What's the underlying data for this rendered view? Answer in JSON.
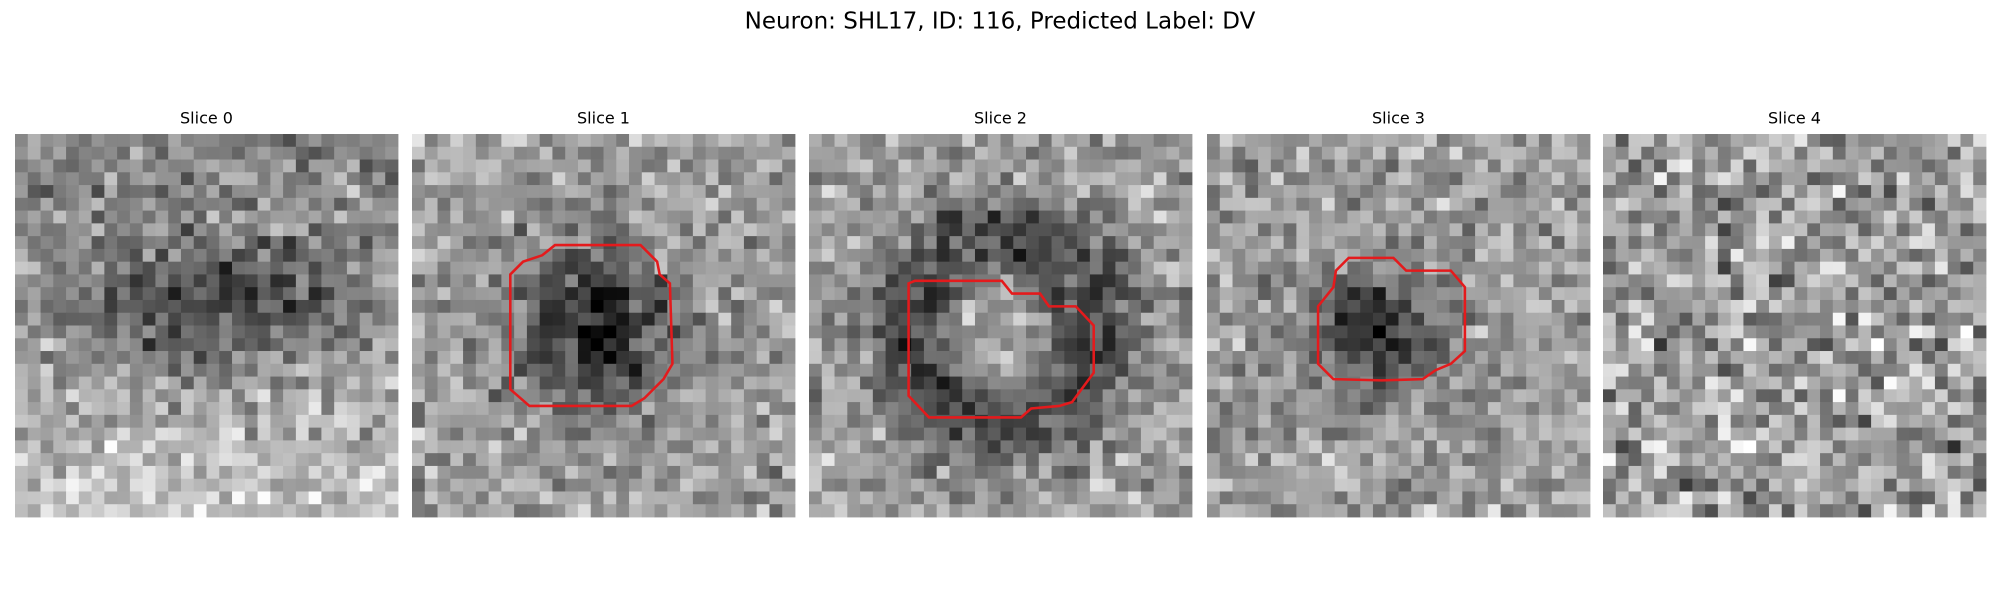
{
  "title": "Neuron: SHL17, ID: 116, Predicted Label: DV",
  "panels": [
    {
      "title": "Slice 0"
    },
    {
      "title": "Slice 1"
    },
    {
      "title": "Slice 2"
    },
    {
      "title": "Slice 3"
    },
    {
      "title": "Slice 4"
    }
  ]
}
